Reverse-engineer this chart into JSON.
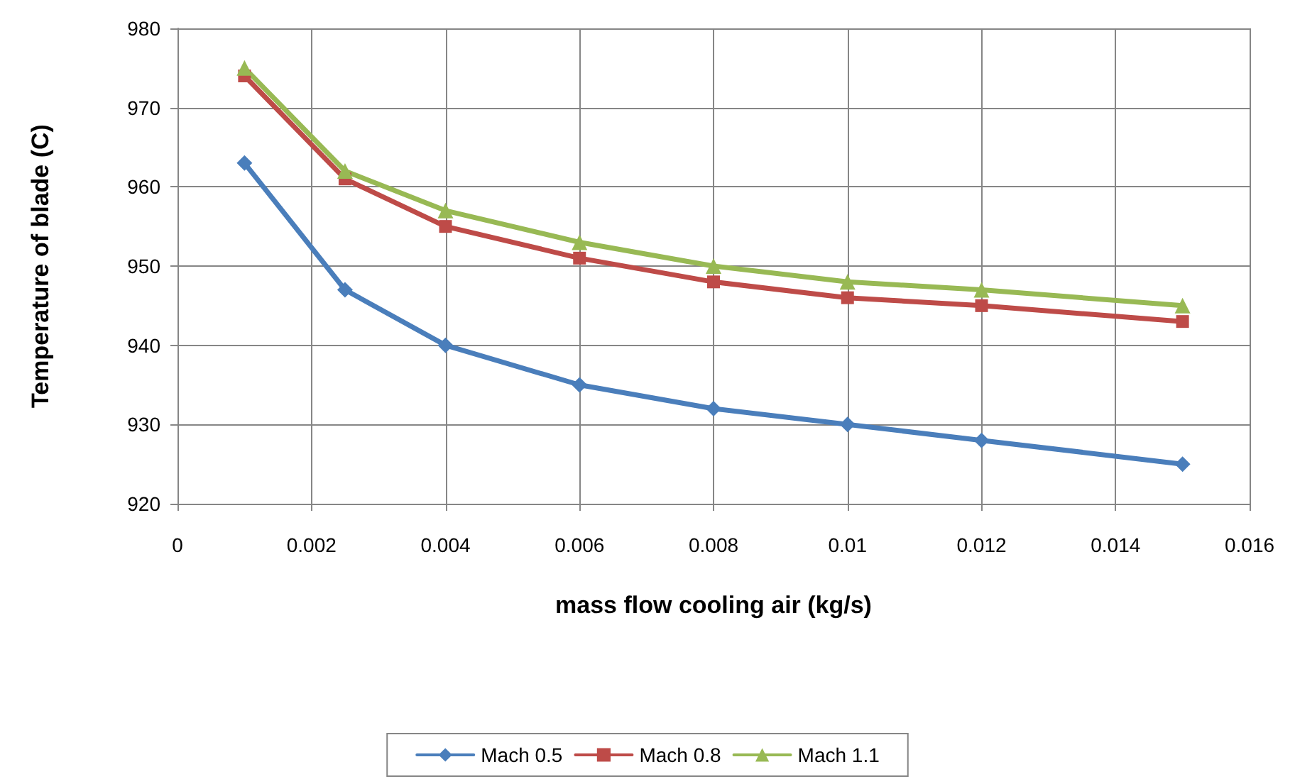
{
  "chart_data": {
    "type": "line",
    "xlabel": "mass flow cooling air (kg/s)",
    "ylabel": "Temperature of blade (C)",
    "x": [
      0.001,
      0.0025,
      0.004,
      0.006,
      0.008,
      0.01,
      0.012,
      0.015
    ],
    "series": [
      {
        "name": "Mach 0.5",
        "color": "#4a7ebb",
        "marker": "diamond",
        "values": [
          963,
          947,
          940,
          935,
          932,
          930,
          928,
          925
        ]
      },
      {
        "name": "Mach 0.8",
        "color": "#be4b48",
        "marker": "square",
        "values": [
          974,
          961,
          955,
          951,
          948,
          946,
          945,
          943
        ]
      },
      {
        "name": "Mach 1.1",
        "color": "#98b954",
        "marker": "triangle",
        "values": [
          975,
          962,
          957,
          953,
          950,
          948,
          947,
          945
        ]
      }
    ],
    "xlim": [
      0,
      0.016
    ],
    "xticks": [
      0,
      0.002,
      0.004,
      0.006,
      0.008,
      0.01,
      0.012,
      0.014,
      0.016
    ],
    "ylim": [
      920,
      980
    ],
    "yticks": [
      920,
      930,
      940,
      950,
      960,
      970,
      980
    ],
    "grid": true,
    "legend": "bottom",
    "line_style": "solid"
  }
}
